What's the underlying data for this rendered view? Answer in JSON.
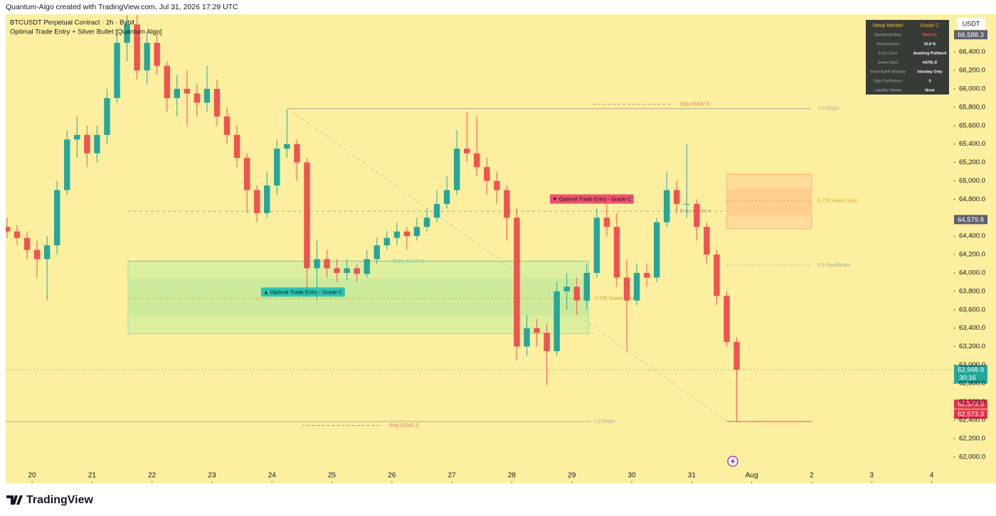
{
  "header": {
    "credit": "Quantum-Algo created with TradingView.com, Jul 31, 2026 17:29 UTC",
    "symbol": "BTCUSDT Perpetual Contract · 2h · Bybit",
    "indicator": "Optimal Trade Entry + Silver Bullet [Quantum Algo]",
    "currency": "USDT"
  },
  "footer": {
    "brand": "TradingView"
  },
  "monitor": {
    "title": "Setup Monitor",
    "grade": "Grade C",
    "rows": [
      [
        "Directional Bias",
        "Bearish"
      ],
      [
        "Retracement",
        "16.6 %"
      ],
      [
        "Entry Zone",
        "Awaiting Pullback"
      ],
      [
        "Sweet Spot",
        "64781.8"
      ],
      [
        "Silver Bullet Window",
        "Intraday Only"
      ],
      [
        "Gap Confluence",
        "0"
      ],
      [
        "Liquidity Sweep",
        "None"
      ]
    ]
  },
  "chart_data": {
    "type": "candlestick",
    "background": "#fcef9f",
    "up_color": "#26a69a",
    "down_color": "#ef5350",
    "xlim": [
      -0.14,
      94.67
    ],
    "ylim": [
      61714,
      66811
    ],
    "candles": [
      [
        64500,
        64600,
        64380,
        64450
      ],
      [
        64450,
        64520,
        64300,
        64380
      ],
      [
        64380,
        64450,
        64150,
        64250
      ],
      [
        64250,
        64350,
        63950,
        64150
      ],
      [
        64150,
        64400,
        63700,
        64300
      ],
      [
        64300,
        65000,
        64200,
        64900
      ],
      [
        64900,
        65550,
        64850,
        65450
      ],
      [
        65450,
        65700,
        65250,
        65500
      ],
      [
        65500,
        65600,
        65150,
        65300
      ],
      [
        65300,
        65600,
        65200,
        65500
      ],
      [
        65500,
        66000,
        65400,
        65900
      ],
      [
        65900,
        66600,
        65850,
        66500
      ],
      [
        66500,
        66800,
        66300,
        66700
      ],
      [
        66700,
        66800,
        66100,
        66200
      ],
      [
        66200,
        66600,
        66050,
        66500
      ],
      [
        66500,
        66600,
        66150,
        66250
      ],
      [
        66250,
        66300,
        65750,
        65900
      ],
      [
        65900,
        66150,
        65700,
        66000
      ],
      [
        66000,
        66200,
        65600,
        65950
      ],
      [
        65950,
        66050,
        65700,
        65850
      ],
      [
        65850,
        66250,
        65750,
        66000
      ],
      [
        66000,
        66100,
        65600,
        65700
      ],
      [
        65700,
        65800,
        65400,
        65500
      ],
      [
        65500,
        65600,
        65150,
        65250
      ],
      [
        65250,
        65300,
        64650,
        64900
      ],
      [
        64900,
        64950,
        64550,
        64650
      ],
      [
        64650,
        65100,
        64600,
        64950
      ],
      [
        64950,
        65450,
        64850,
        65350
      ],
      [
        65350,
        65780,
        65250,
        65400
      ],
      [
        65400,
        65450,
        65000,
        65200
      ],
      [
        65200,
        65250,
        63800,
        64050
      ],
      [
        64050,
        64350,
        63700,
        64150
      ],
      [
        64150,
        64250,
        63950,
        64050
      ],
      [
        64050,
        64150,
        63900,
        64000
      ],
      [
        64000,
        64150,
        63920,
        64050
      ],
      [
        64050,
        64100,
        63900,
        63990
      ],
      [
        63990,
        64250,
        63950,
        64150
      ],
      [
        64150,
        64380,
        64100,
        64300
      ],
      [
        64300,
        64450,
        64250,
        64380
      ],
      [
        64380,
        64550,
        64300,
        64450
      ],
      [
        64450,
        64500,
        64250,
        64400
      ],
      [
        64400,
        64600,
        64350,
        64500
      ],
      [
        64500,
        64700,
        64450,
        64600
      ],
      [
        64600,
        64900,
        64550,
        64750
      ],
      [
        64750,
        65050,
        64700,
        64900
      ],
      [
        64900,
        65550,
        64850,
        65350
      ],
      [
        65350,
        65750,
        65200,
        65300
      ],
      [
        65300,
        65700,
        65050,
        65150
      ],
      [
        65150,
        65250,
        64850,
        65000
      ],
      [
        65000,
        65100,
        64750,
        64900
      ],
      [
        64900,
        64950,
        64350,
        64600
      ],
      [
        64600,
        64700,
        63050,
        63200
      ],
      [
        63200,
        63550,
        63100,
        63400
      ],
      [
        63400,
        63500,
        63200,
        63350
      ],
      [
        63350,
        63450,
        62780,
        63150
      ],
      [
        63150,
        63900,
        63100,
        63800
      ],
      [
        63800,
        64000,
        63600,
        63850
      ],
      [
        63850,
        63950,
        63550,
        63700
      ],
      [
        63700,
        64100,
        63600,
        64000
      ],
      [
        64000,
        64700,
        63950,
        64600
      ],
      [
        64600,
        64750,
        64400,
        64500
      ],
      [
        64500,
        64650,
        63850,
        63950
      ],
      [
        63950,
        64150,
        63150,
        63700
      ],
      [
        63700,
        64100,
        63650,
        64000
      ],
      [
        64000,
        64100,
        63850,
        63950
      ],
      [
        63950,
        64600,
        63900,
        64550
      ],
      [
        64550,
        65100,
        64500,
        64900
      ],
      [
        64900,
        65000,
        64650,
        64750
      ],
      [
        64750,
        65400,
        64600,
        64750
      ],
      [
        64750,
        64800,
        64350,
        64500
      ],
      [
        64500,
        64550,
        64100,
        64200
      ],
      [
        64200,
        64250,
        63650,
        63750
      ],
      [
        63750,
        63800,
        63200,
        63250
      ],
      [
        63250,
        63300,
        62380,
        62948.9
      ]
    ],
    "xticks": [
      {
        "value": 2.5,
        "label": "20"
      },
      {
        "value": 8.5,
        "label": "21"
      },
      {
        "value": 14.5,
        "label": "22"
      },
      {
        "value": 20.5,
        "label": "23"
      },
      {
        "value": 26.5,
        "label": "24"
      },
      {
        "value": 32.5,
        "label": "25"
      },
      {
        "value": 38.5,
        "label": "26"
      },
      {
        "value": 44.5,
        "label": "27"
      },
      {
        "value": 50.5,
        "label": "28"
      },
      {
        "value": 56.5,
        "label": "29"
      },
      {
        "value": 62.5,
        "label": "30"
      },
      {
        "value": 68.5,
        "label": "31"
      },
      {
        "value": 74.5,
        "label": "Aug"
      },
      {
        "value": 80.5,
        "label": "2"
      },
      {
        "value": 86.5,
        "label": "3"
      },
      {
        "value": 92.5,
        "label": "4"
      }
    ],
    "yticks": [
      {
        "value": 62000,
        "label": "62,000.0"
      },
      {
        "value": 62200,
        "label": "62,200.0"
      },
      {
        "value": 62400,
        "label": "62,400.0"
      },
      {
        "value": 62600,
        "label": "62,600.0"
      },
      {
        "value": 62800,
        "label": "62,800.0"
      },
      {
        "value": 63000,
        "label": "63,000.0"
      },
      {
        "value": 63200,
        "label": "63,200.0"
      },
      {
        "value": 63400,
        "label": "63,400.0"
      },
      {
        "value": 63600,
        "label": "63,600.0"
      },
      {
        "value": 63800,
        "label": "63,800.0"
      },
      {
        "value": 64000,
        "label": "64,000.0"
      },
      {
        "value": 64200,
        "label": "64,200.0"
      },
      {
        "value": 64400,
        "label": "64,400.0"
      },
      {
        "value": 64800,
        "label": "64,800.0"
      },
      {
        "value": 65000,
        "label": "65,000.0"
      },
      {
        "value": 65200,
        "label": "65,200.0"
      },
      {
        "value": 65400,
        "label": "65,400.0"
      },
      {
        "value": 65600,
        "label": "65,600.0"
      },
      {
        "value": 65800,
        "label": "65,800.0"
      },
      {
        "value": 66000,
        "label": "66,000.0"
      },
      {
        "value": 66200,
        "label": "66,200.0"
      },
      {
        "value": 66400,
        "label": "66,400.0"
      }
    ],
    "zones": [
      {
        "top": 64127.9,
        "bottom": 63340,
        "inner_top": 63938,
        "inner_bottom": 63537,
        "from": 12.1,
        "to": 58.2,
        "color": "#dcef9f",
        "inner_color": "#cdea9c",
        "border": "#8fd3a8"
      },
      {
        "top": 65073,
        "bottom": 64479,
        "inner_top": 64919,
        "inner_bottom": 64625,
        "from": 72,
        "to": 80.5,
        "color": "#ffdc9a",
        "inner_color": "#ffcf8e",
        "border": "#f2a86a"
      }
    ],
    "levels": [
      {
        "label": "Entry 64127.9",
        "price": 64127.9,
        "from": 12.1,
        "to": 58.2,
        "label_at": 38.6,
        "color": "#7fc7a8",
        "dash": "none"
      },
      {
        "label": "0.705 Sweet Spot",
        "price": 63722,
        "from": 12.1,
        "to": 58.2,
        "label_at": 58.8,
        "color": "#c9a030",
        "dash": "2 3"
      },
      {
        "label": "1.0 Origin",
        "price": 62386,
        "from": -0.14,
        "to": 58.4,
        "label_at": 58.7,
        "color": "#a8a8a0",
        "dash": "none"
      },
      {
        "label": "Stop 62342.3",
        "price": 62342.3,
        "from": 29.5,
        "to": 37.4,
        "label_at": 38.2,
        "color": "#e57373",
        "dash": "4 3"
      },
      {
        "label": "Stop 65832.9",
        "price": 65832.9,
        "from": 58.6,
        "to": 66.6,
        "label_at": 67.3,
        "color": "#e57373",
        "dash": "4 3"
      },
      {
        "label": "1.0 Origin",
        "price": 65785,
        "from": 28.1,
        "to": 80.4,
        "label_at": 81.1,
        "color": "#a8a8a0",
        "dash": "none"
      },
      {
        "label": "Entry 64669.4",
        "price": 64669.4,
        "from": 12.1,
        "to": 72,
        "label_at": 67.3,
        "color": "#a8a8a0",
        "dash": "4 4"
      },
      {
        "label": "0.705 Sweet Spot",
        "price": 64781.8,
        "from": 72,
        "to": 80.5,
        "label_at": 81.1,
        "color": "#e0a040",
        "dash": "2 3"
      },
      {
        "label": "0.5 Equilibrium",
        "price": 64085,
        "from": 72,
        "to": 80.5,
        "label_at": 81.1,
        "color": "#a8a8a0",
        "dash": "2 3"
      },
      {
        "price": 62386,
        "from": 72,
        "to": 80.5,
        "color": "#e05060",
        "dash": "none"
      }
    ],
    "fib_lines": [
      {
        "from": 28.1,
        "from_price": 65785,
        "to": 72,
        "to_price": 62386,
        "color": "#c8c890"
      }
    ],
    "signals": [
      {
        "text": "▲ Optimal Trade Entry - Grade C",
        "at": 29.6,
        "price": 63792,
        "color": "#2ec4b0"
      },
      {
        "text": "▼ Optimal Trade Entry - Grade C",
        "at": 58.5,
        "price": 64803,
        "color": "#f0506e"
      }
    ],
    "current_price": 62948.9,
    "price_tags": [
      {
        "label": "66,588.3",
        "value": 66588.3,
        "color": "#5d606b"
      },
      {
        "label": "64,579.8",
        "value": 64579.8,
        "color": "#5d606b"
      },
      {
        "label": "62,948.9",
        "value": 62948.9,
        "color": "#26a69a",
        "sub": "30:16"
      },
      {
        "label": "62,573.3",
        "value": 62573.3,
        "color": "#e5334b"
      },
      {
        "label": "62,573.3",
        "value": 62573.3,
        "color": "#e5334b"
      }
    ]
  }
}
